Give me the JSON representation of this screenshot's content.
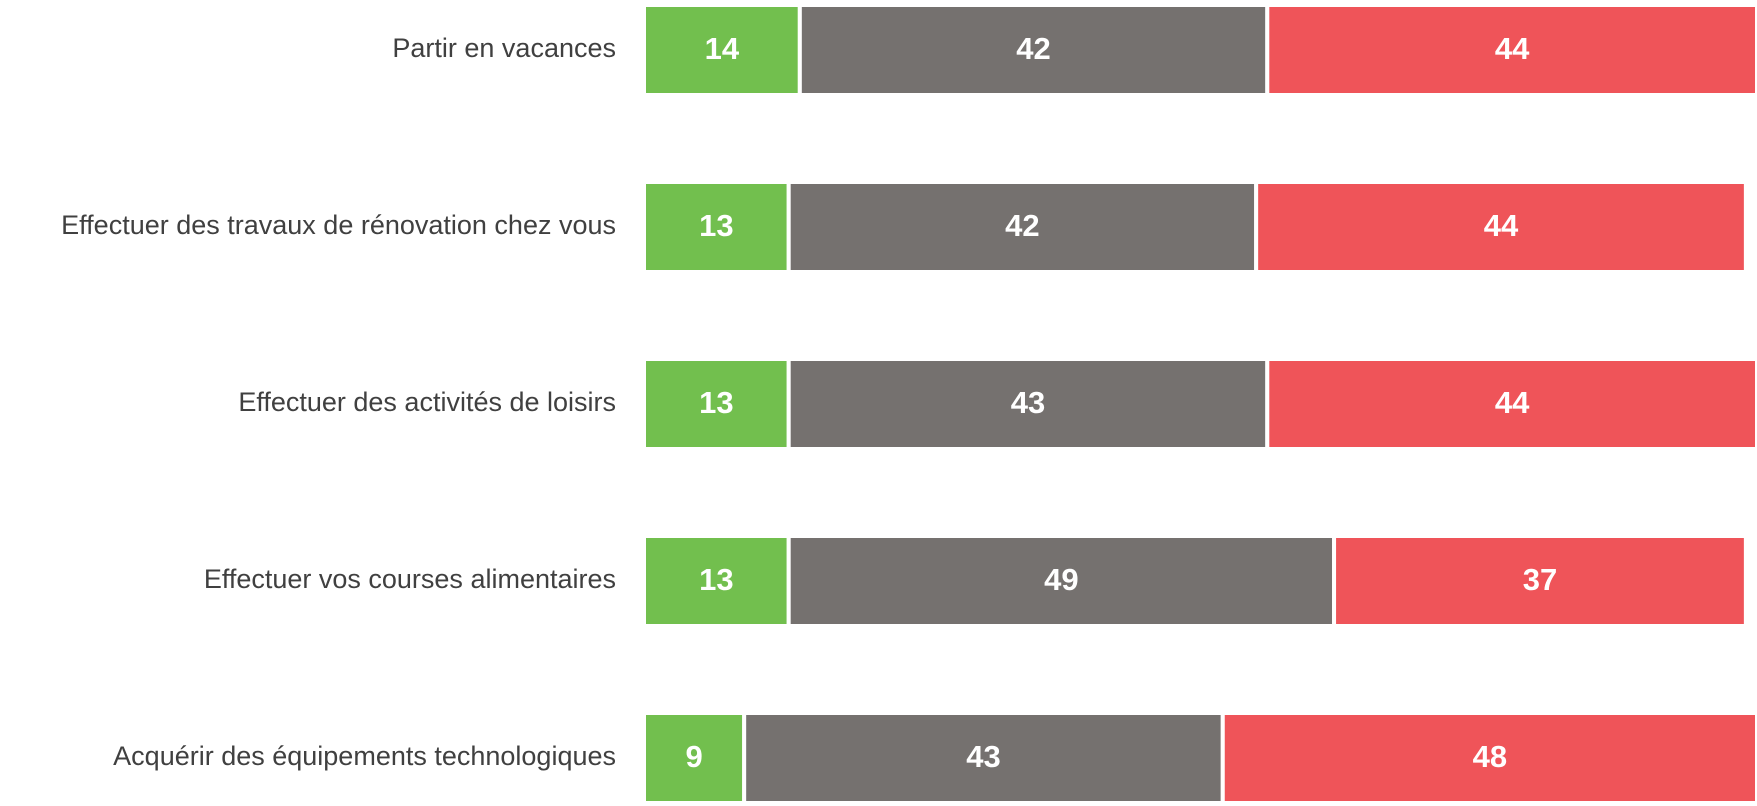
{
  "chart_data": {
    "type": "stacked-bar-horizontal",
    "categories": [
      "Partir en vacances",
      "Effectuer des travaux de rénovation chez vous",
      "Effectuer des activités de loisirs",
      "Effectuer vos courses alimentaires",
      "Acquérir des équipements technologiques"
    ],
    "series": [
      {
        "color": "#72bf4e",
        "values": [
          14,
          13,
          13,
          13,
          9
        ]
      },
      {
        "color": "#75716f",
        "values": [
          42,
          42,
          43,
          49,
          43
        ]
      },
      {
        "color": "#ef5459",
        "values": [
          44,
          44,
          44,
          37,
          48
        ]
      }
    ],
    "xlim": [
      0,
      100
    ]
  }
}
